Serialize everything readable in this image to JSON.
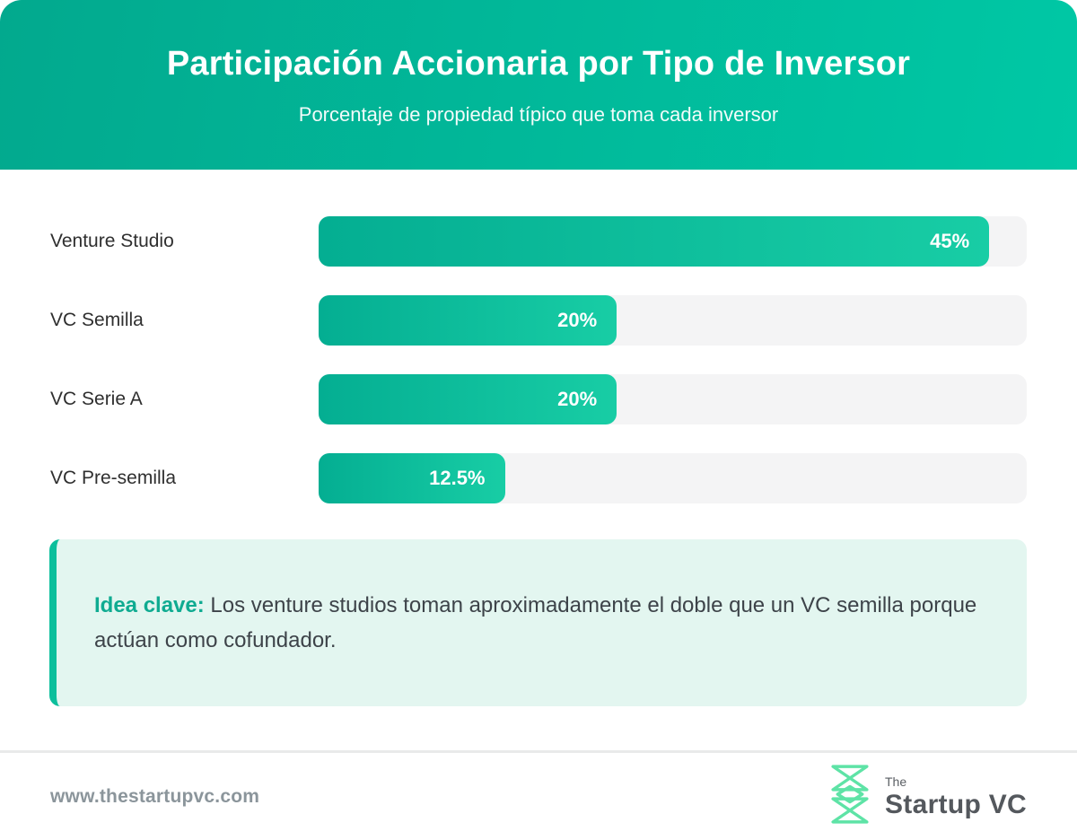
{
  "header": {
    "title": "Participación Accionaria por Tipo de Inversor",
    "subtitle": "Porcentaje de propiedad típico que toma cada inversor"
  },
  "chart_data": {
    "type": "bar",
    "orientation": "horizontal",
    "title": "Participación Accionaria por Tipo de Inversor",
    "subtitle": "Porcentaje de propiedad típico que toma cada inversor",
    "categories": [
      "Venture Studio",
      "VC Semilla",
      "VC Serie A",
      "VC Pre-semilla"
    ],
    "values": [
      45,
      20,
      20,
      12.5
    ],
    "value_labels": [
      "45%",
      "20%",
      "20%",
      "12.5%"
    ],
    "xlim": [
      0,
      47.5
    ],
    "legend": "none",
    "grid": "off",
    "bar_color_start": "#04ae92",
    "bar_color_end": "#18cda5",
    "track_color": "#f4f4f5"
  },
  "insight": {
    "label": "Idea clave:",
    "text": "Los venture studios toman aproximadamente el doble que un VC semilla porque actúan como cofundador."
  },
  "footer": {
    "website": "www.thestartupvc.com",
    "logo_small": "The",
    "logo_main": "Startup VC"
  },
  "colors": {
    "header_gradient_start": "#02a98e",
    "header_gradient_end": "#00c8a5",
    "insight_bg": "#e3f6f0",
    "insight_border": "#0cbf9c",
    "insight_accent_text": "#0fab91",
    "label_text": "#2f2f2f",
    "footer_text": "#8b959b",
    "logo_icon": "#5ee3a6"
  }
}
